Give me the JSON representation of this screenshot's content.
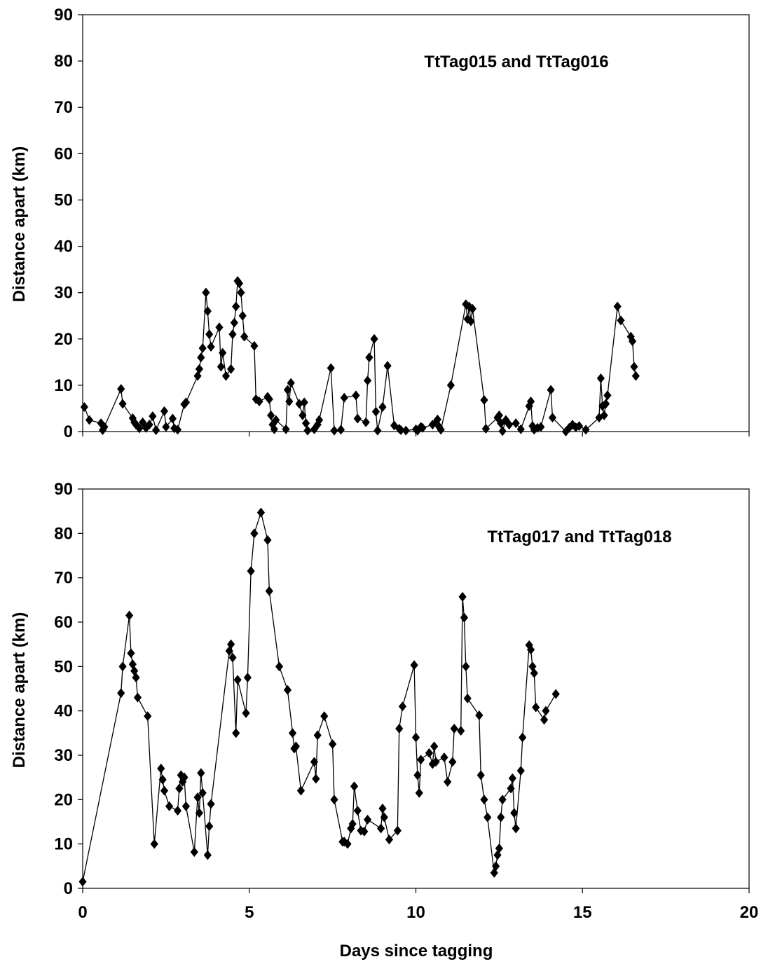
{
  "chart_data": [
    {
      "type": "line",
      "title": "TtTag015 and TtTag016",
      "xlabel": "",
      "ylabel": "Distance apart (km)",
      "xlim": [
        0,
        20
      ],
      "ylim": [
        0,
        90
      ],
      "yticks": [
        0,
        10,
        20,
        30,
        40,
        50,
        60,
        70,
        80,
        90
      ],
      "xticks": [
        0,
        5,
        10,
        15,
        20
      ],
      "xtick_labels_shown": false,
      "marker": "diamond",
      "grid": false,
      "series": [
        {
          "x": [
            0.05,
            0.2,
            0.55,
            0.6,
            0.65,
            1.15,
            1.2,
            1.5,
            1.55,
            1.6,
            1.7,
            1.8,
            1.9,
            2.0,
            2.1,
            2.2,
            2.45,
            2.5,
            2.7,
            2.75,
            2.85,
            3.05,
            3.1,
            3.45,
            3.5,
            3.55,
            3.6,
            3.7,
            3.75,
            3.8,
            3.85,
            4.1,
            4.15,
            4.2,
            4.3,
            4.45,
            4.5,
            4.55,
            4.6,
            4.65,
            4.7,
            4.75,
            4.8,
            4.85,
            5.15,
            5.2,
            5.3,
            5.55,
            5.6,
            5.65,
            5.7,
            5.75,
            5.8,
            6.1,
            6.15,
            6.2,
            6.25,
            6.5,
            6.6,
            6.65,
            6.7,
            6.75,
            6.95,
            7.05,
            7.1,
            7.45,
            7.55,
            7.75,
            7.85,
            8.2,
            8.25,
            8.5,
            8.55,
            8.6,
            8.75,
            8.8,
            8.85,
            9.0,
            9.15,
            9.35,
            9.5,
            9.55,
            9.7,
            10.0,
            10.05,
            10.15,
            10.2,
            10.5,
            10.6,
            10.65,
            10.7,
            10.75,
            11.05,
            11.5,
            11.55,
            11.6,
            11.65,
            11.7,
            12.05,
            12.1,
            12.45,
            12.5,
            12.55,
            12.6,
            12.7,
            12.8,
            13.0,
            13.15,
            13.4,
            13.45,
            13.5,
            13.55,
            13.65,
            13.75,
            14.05,
            14.1,
            14.5,
            14.6,
            14.7,
            14.8,
            14.9,
            15.1,
            15.5,
            15.55,
            15.6,
            15.65,
            15.7,
            15.75,
            16.05,
            16.15,
            16.45,
            16.5,
            16.55,
            16.6
          ],
          "y": [
            5.3,
            2.5,
            1.8,
            0.3,
            1.0,
            9.2,
            6.0,
            2.9,
            2.0,
            1.5,
            0.7,
            2.0,
            0.8,
            1.5,
            3.3,
            0.3,
            4.4,
            1.0,
            2.8,
            0.7,
            0.4,
            5.9,
            6.3,
            12.0,
            13.5,
            16.0,
            18.0,
            30.0,
            26.0,
            21.0,
            18.3,
            22.5,
            14.0,
            17.0,
            12.0,
            13.5,
            21.0,
            23.5,
            27.0,
            32.5,
            32.0,
            30.0,
            25.0,
            20.5,
            18.5,
            7.0,
            6.5,
            7.5,
            7.0,
            3.5,
            1.5,
            0.5,
            2.5,
            0.5,
            9.0,
            6.5,
            10.5,
            6.0,
            3.5,
            6.3,
            1.8,
            0.2,
            0.5,
            1.5,
            2.5,
            13.7,
            0.2,
            0.4,
            7.3,
            7.8,
            2.8,
            2.0,
            11.0,
            16.0,
            20.0,
            4.3,
            0.2,
            5.3,
            14.2,
            1.3,
            0.6,
            0.3,
            0.2,
            0.5,
            0.2,
            1.0,
            0.8,
            1.5,
            2.0,
            2.6,
            1.0,
            0.4,
            10.0,
            27.5,
            24.3,
            27.0,
            23.8,
            26.5,
            6.8,
            0.6,
            3.0,
            3.5,
            1.8,
            0.1,
            2.5,
            1.5,
            1.8,
            0.5,
            5.5,
            6.5,
            1.2,
            0.4,
            0.8,
            1.0,
            9.0,
            3.0,
            0.0,
            0.8,
            1.5,
            0.9,
            1.2,
            0.4,
            3.0,
            11.5,
            5.5,
            3.5,
            6.0,
            7.8,
            27.0,
            24.0,
            20.5,
            19.5,
            14.0,
            12.0
          ]
        }
      ]
    },
    {
      "type": "line",
      "title": "TtTag017 and TtTag018",
      "xlabel": "Days since tagging",
      "ylabel": "Distance apart (km)",
      "xlim": [
        0,
        20
      ],
      "ylim": [
        0,
        90
      ],
      "yticks": [
        0,
        10,
        20,
        30,
        40,
        50,
        60,
        70,
        80,
        90
      ],
      "xticks": [
        0,
        5,
        10,
        15,
        20
      ],
      "xtick_labels_shown": true,
      "marker": "diamond",
      "grid": false,
      "series": [
        {
          "x": [
            0.0,
            1.15,
            1.2,
            1.4,
            1.45,
            1.5,
            1.55,
            1.6,
            1.65,
            1.95,
            2.15,
            2.35,
            2.4,
            2.45,
            2.6,
            2.85,
            2.9,
            2.95,
            3.0,
            3.05,
            3.1,
            3.35,
            3.45,
            3.5,
            3.55,
            3.6,
            3.75,
            3.8,
            3.85,
            4.4,
            4.45,
            4.5,
            4.6,
            4.65,
            4.9,
            4.95,
            5.05,
            5.15,
            5.35,
            5.55,
            5.6,
            5.9,
            6.15,
            6.3,
            6.35,
            6.4,
            6.55,
            6.95,
            7.0,
            7.05,
            7.25,
            7.5,
            7.55,
            7.8,
            7.85,
            7.95,
            8.05,
            8.1,
            8.15,
            8.25,
            8.35,
            8.45,
            8.55,
            8.95,
            9.0,
            9.05,
            9.2,
            9.45,
            9.5,
            9.6,
            9.95,
            10.0,
            10.05,
            10.1,
            10.15,
            10.4,
            10.5,
            10.55,
            10.6,
            10.85,
            10.95,
            11.1,
            11.15,
            11.35,
            11.4,
            11.45,
            11.5,
            11.55,
            11.9,
            11.95,
            12.05,
            12.15,
            12.35,
            12.4,
            12.45,
            12.5,
            12.55,
            12.6,
            12.85,
            12.9,
            12.95,
            13.0,
            13.15,
            13.2,
            13.4,
            13.45,
            13.5,
            13.55,
            13.6,
            13.85,
            13.9,
            14.2
          ],
          "y": [
            1.5,
            44.0,
            50.0,
            61.5,
            53.0,
            50.5,
            49.0,
            47.5,
            43.0,
            38.8,
            10.0,
            27.0,
            24.5,
            22.0,
            18.5,
            17.5,
            22.5,
            25.5,
            24.0,
            25.0,
            18.5,
            8.2,
            20.5,
            17.0,
            26.0,
            21.5,
            7.5,
            14.0,
            19.0,
            53.5,
            55.0,
            52.0,
            35.0,
            47.0,
            39.5,
            47.5,
            71.5,
            80.0,
            84.7,
            78.5,
            67.0,
            50.0,
            44.7,
            35.0,
            31.5,
            32.0,
            22.0,
            28.5,
            24.7,
            34.5,
            38.8,
            32.5,
            20.0,
            10.5,
            10.5,
            10.0,
            13.5,
            14.5,
            23.0,
            17.5,
            13.0,
            12.8,
            15.5,
            13.5,
            18.0,
            16.0,
            11.0,
            13.0,
            36.0,
            41.0,
            50.3,
            34.0,
            25.5,
            21.5,
            29.0,
            30.5,
            28.0,
            32.0,
            28.5,
            29.5,
            24.0,
            28.5,
            36.0,
            35.5,
            65.7,
            61.0,
            50.0,
            42.8,
            39.0,
            25.5,
            20.0,
            16.0,
            3.5,
            5.0,
            7.5,
            9.0,
            16.0,
            20.0,
            22.5,
            24.8,
            17.0,
            13.5,
            26.5,
            34.0,
            54.8,
            53.8,
            50.0,
            48.5,
            40.8,
            38.0,
            40.0,
            43.8
          ]
        }
      ]
    }
  ]
}
